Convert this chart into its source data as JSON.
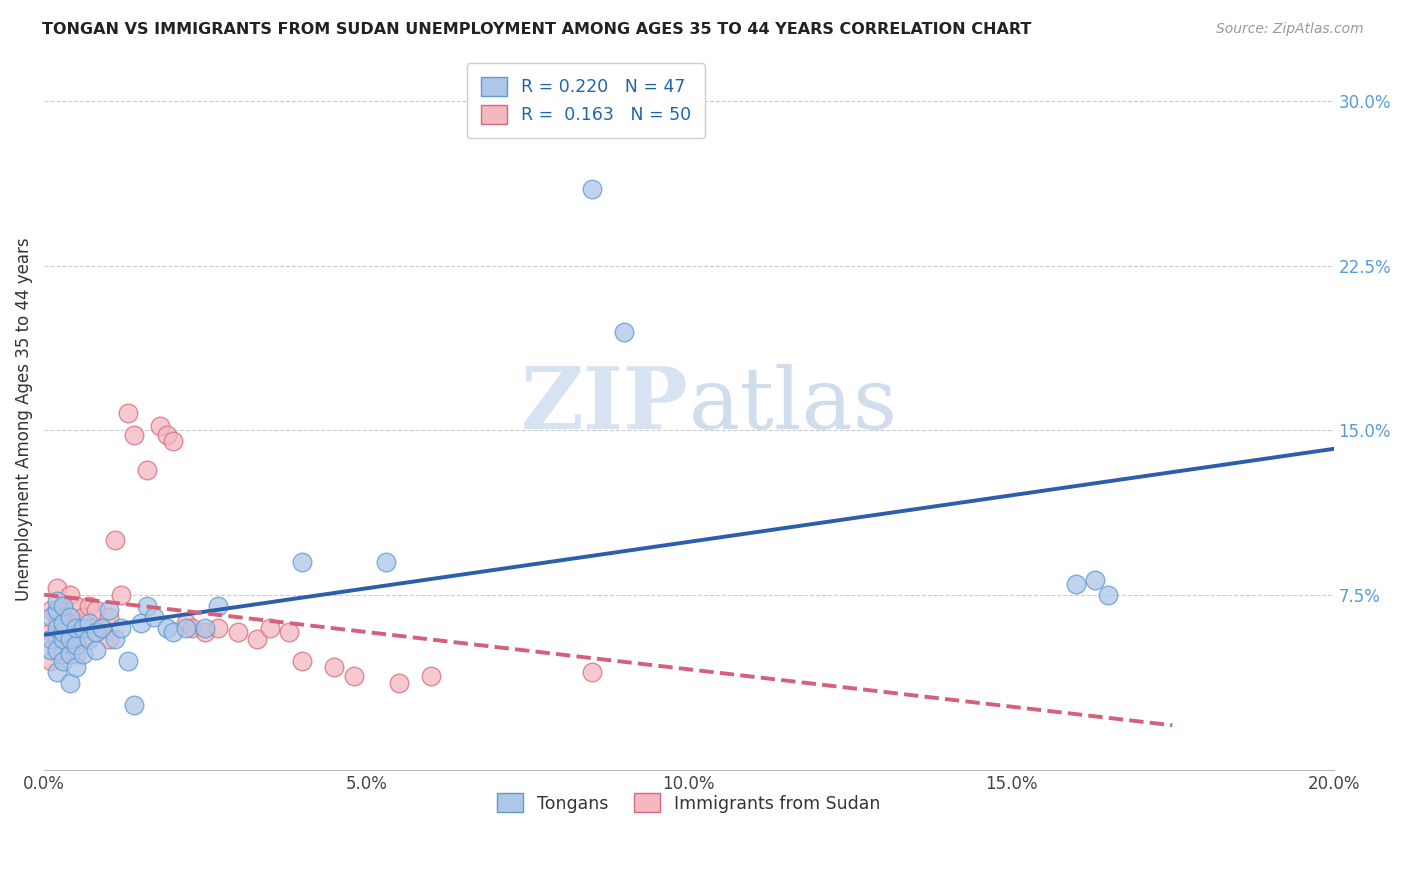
{
  "title": "TONGAN VS IMMIGRANTS FROM SUDAN UNEMPLOYMENT AMONG AGES 35 TO 44 YEARS CORRELATION CHART",
  "source": "Source: ZipAtlas.com",
  "ylabel": "Unemployment Among Ages 35 to 44 years",
  "xlim": [
    0.0,
    0.2
  ],
  "ylim": [
    -0.005,
    0.315
  ],
  "xtick_labels": [
    "0.0%",
    "5.0%",
    "10.0%",
    "15.0%",
    "20.0%"
  ],
  "xtick_vals": [
    0.0,
    0.05,
    0.1,
    0.15,
    0.2
  ],
  "ytick_labels_right": [
    "7.5%",
    "15.0%",
    "22.5%",
    "30.0%"
  ],
  "ytick_vals_right": [
    0.075,
    0.15,
    0.225,
    0.3
  ],
  "legend_R_tongan": "0.220",
  "legend_N_tongan": "47",
  "legend_R_sudan": "0.163",
  "legend_N_sudan": "50",
  "tongan_face_color": "#aec6e8",
  "tongan_edge_color": "#5b9bd5",
  "sudan_face_color": "#f4b8c1",
  "sudan_edge_color": "#d9697a",
  "trendline_tongan_color": "#2b5fac",
  "trendline_sudan_color": "#d4607a",
  "watermark_color": "#d0dff0",
  "tongan_x": [
    0.001,
    0.001,
    0.001,
    0.002,
    0.002,
    0.002,
    0.002,
    0.002,
    0.003,
    0.003,
    0.003,
    0.003,
    0.003,
    0.004,
    0.004,
    0.004,
    0.004,
    0.005,
    0.005,
    0.005,
    0.006,
    0.006,
    0.007,
    0.007,
    0.008,
    0.008,
    0.009,
    0.01,
    0.011,
    0.012,
    0.013,
    0.014,
    0.015,
    0.016,
    0.017,
    0.019,
    0.02,
    0.022,
    0.025,
    0.027,
    0.04,
    0.053,
    0.085,
    0.09,
    0.16,
    0.163,
    0.165
  ],
  "tongan_y": [
    0.05,
    0.055,
    0.065,
    0.04,
    0.05,
    0.06,
    0.068,
    0.072,
    0.045,
    0.055,
    0.058,
    0.062,
    0.07,
    0.035,
    0.048,
    0.055,
    0.065,
    0.042,
    0.052,
    0.06,
    0.048,
    0.06,
    0.055,
    0.062,
    0.05,
    0.058,
    0.06,
    0.068,
    0.055,
    0.06,
    0.045,
    0.025,
    0.062,
    0.07,
    0.065,
    0.06,
    0.058,
    0.06,
    0.06,
    0.07,
    0.09,
    0.09,
    0.26,
    0.195,
    0.08,
    0.082,
    0.075
  ],
  "sudan_x": [
    0.001,
    0.001,
    0.001,
    0.002,
    0.002,
    0.002,
    0.002,
    0.003,
    0.003,
    0.003,
    0.003,
    0.004,
    0.004,
    0.004,
    0.004,
    0.005,
    0.005,
    0.005,
    0.005,
    0.006,
    0.006,
    0.007,
    0.007,
    0.008,
    0.008,
    0.009,
    0.01,
    0.01,
    0.011,
    0.012,
    0.013,
    0.014,
    0.016,
    0.018,
    0.019,
    0.02,
    0.022,
    0.023,
    0.025,
    0.027,
    0.03,
    0.033,
    0.035,
    0.038,
    0.04,
    0.045,
    0.048,
    0.055,
    0.06,
    0.085
  ],
  "sudan_y": [
    0.045,
    0.058,
    0.068,
    0.055,
    0.062,
    0.068,
    0.078,
    0.048,
    0.055,
    0.062,
    0.07,
    0.05,
    0.058,
    0.065,
    0.075,
    0.048,
    0.055,
    0.062,
    0.07,
    0.055,
    0.065,
    0.06,
    0.07,
    0.058,
    0.068,
    0.06,
    0.055,
    0.065,
    0.1,
    0.075,
    0.158,
    0.148,
    0.132,
    0.152,
    0.148,
    0.145,
    0.062,
    0.06,
    0.058,
    0.06,
    0.058,
    0.055,
    0.06,
    0.058,
    0.045,
    0.042,
    0.038,
    0.035,
    0.038,
    0.04
  ]
}
